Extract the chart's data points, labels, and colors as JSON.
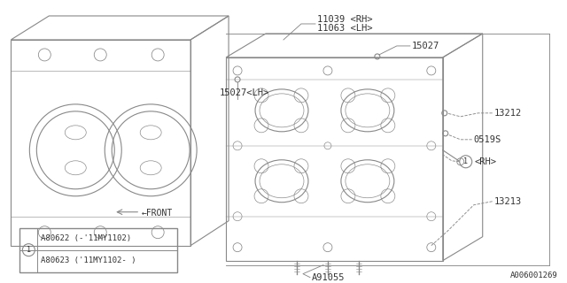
{
  "bg_color": "#ffffff",
  "line_color": "#888888",
  "text_color": "#333333",
  "title_code": "A006001269",
  "labels": {
    "11039_rh": "11039 <RH>",
    "11063_lh": "11063 <LH>",
    "15027_lh": "15027<LH>",
    "15027": "15027",
    "13212": "13212",
    "0519s": "0519S",
    "13213": "13213",
    "a91055": "A91055",
    "front": "←FRONT"
  }
}
